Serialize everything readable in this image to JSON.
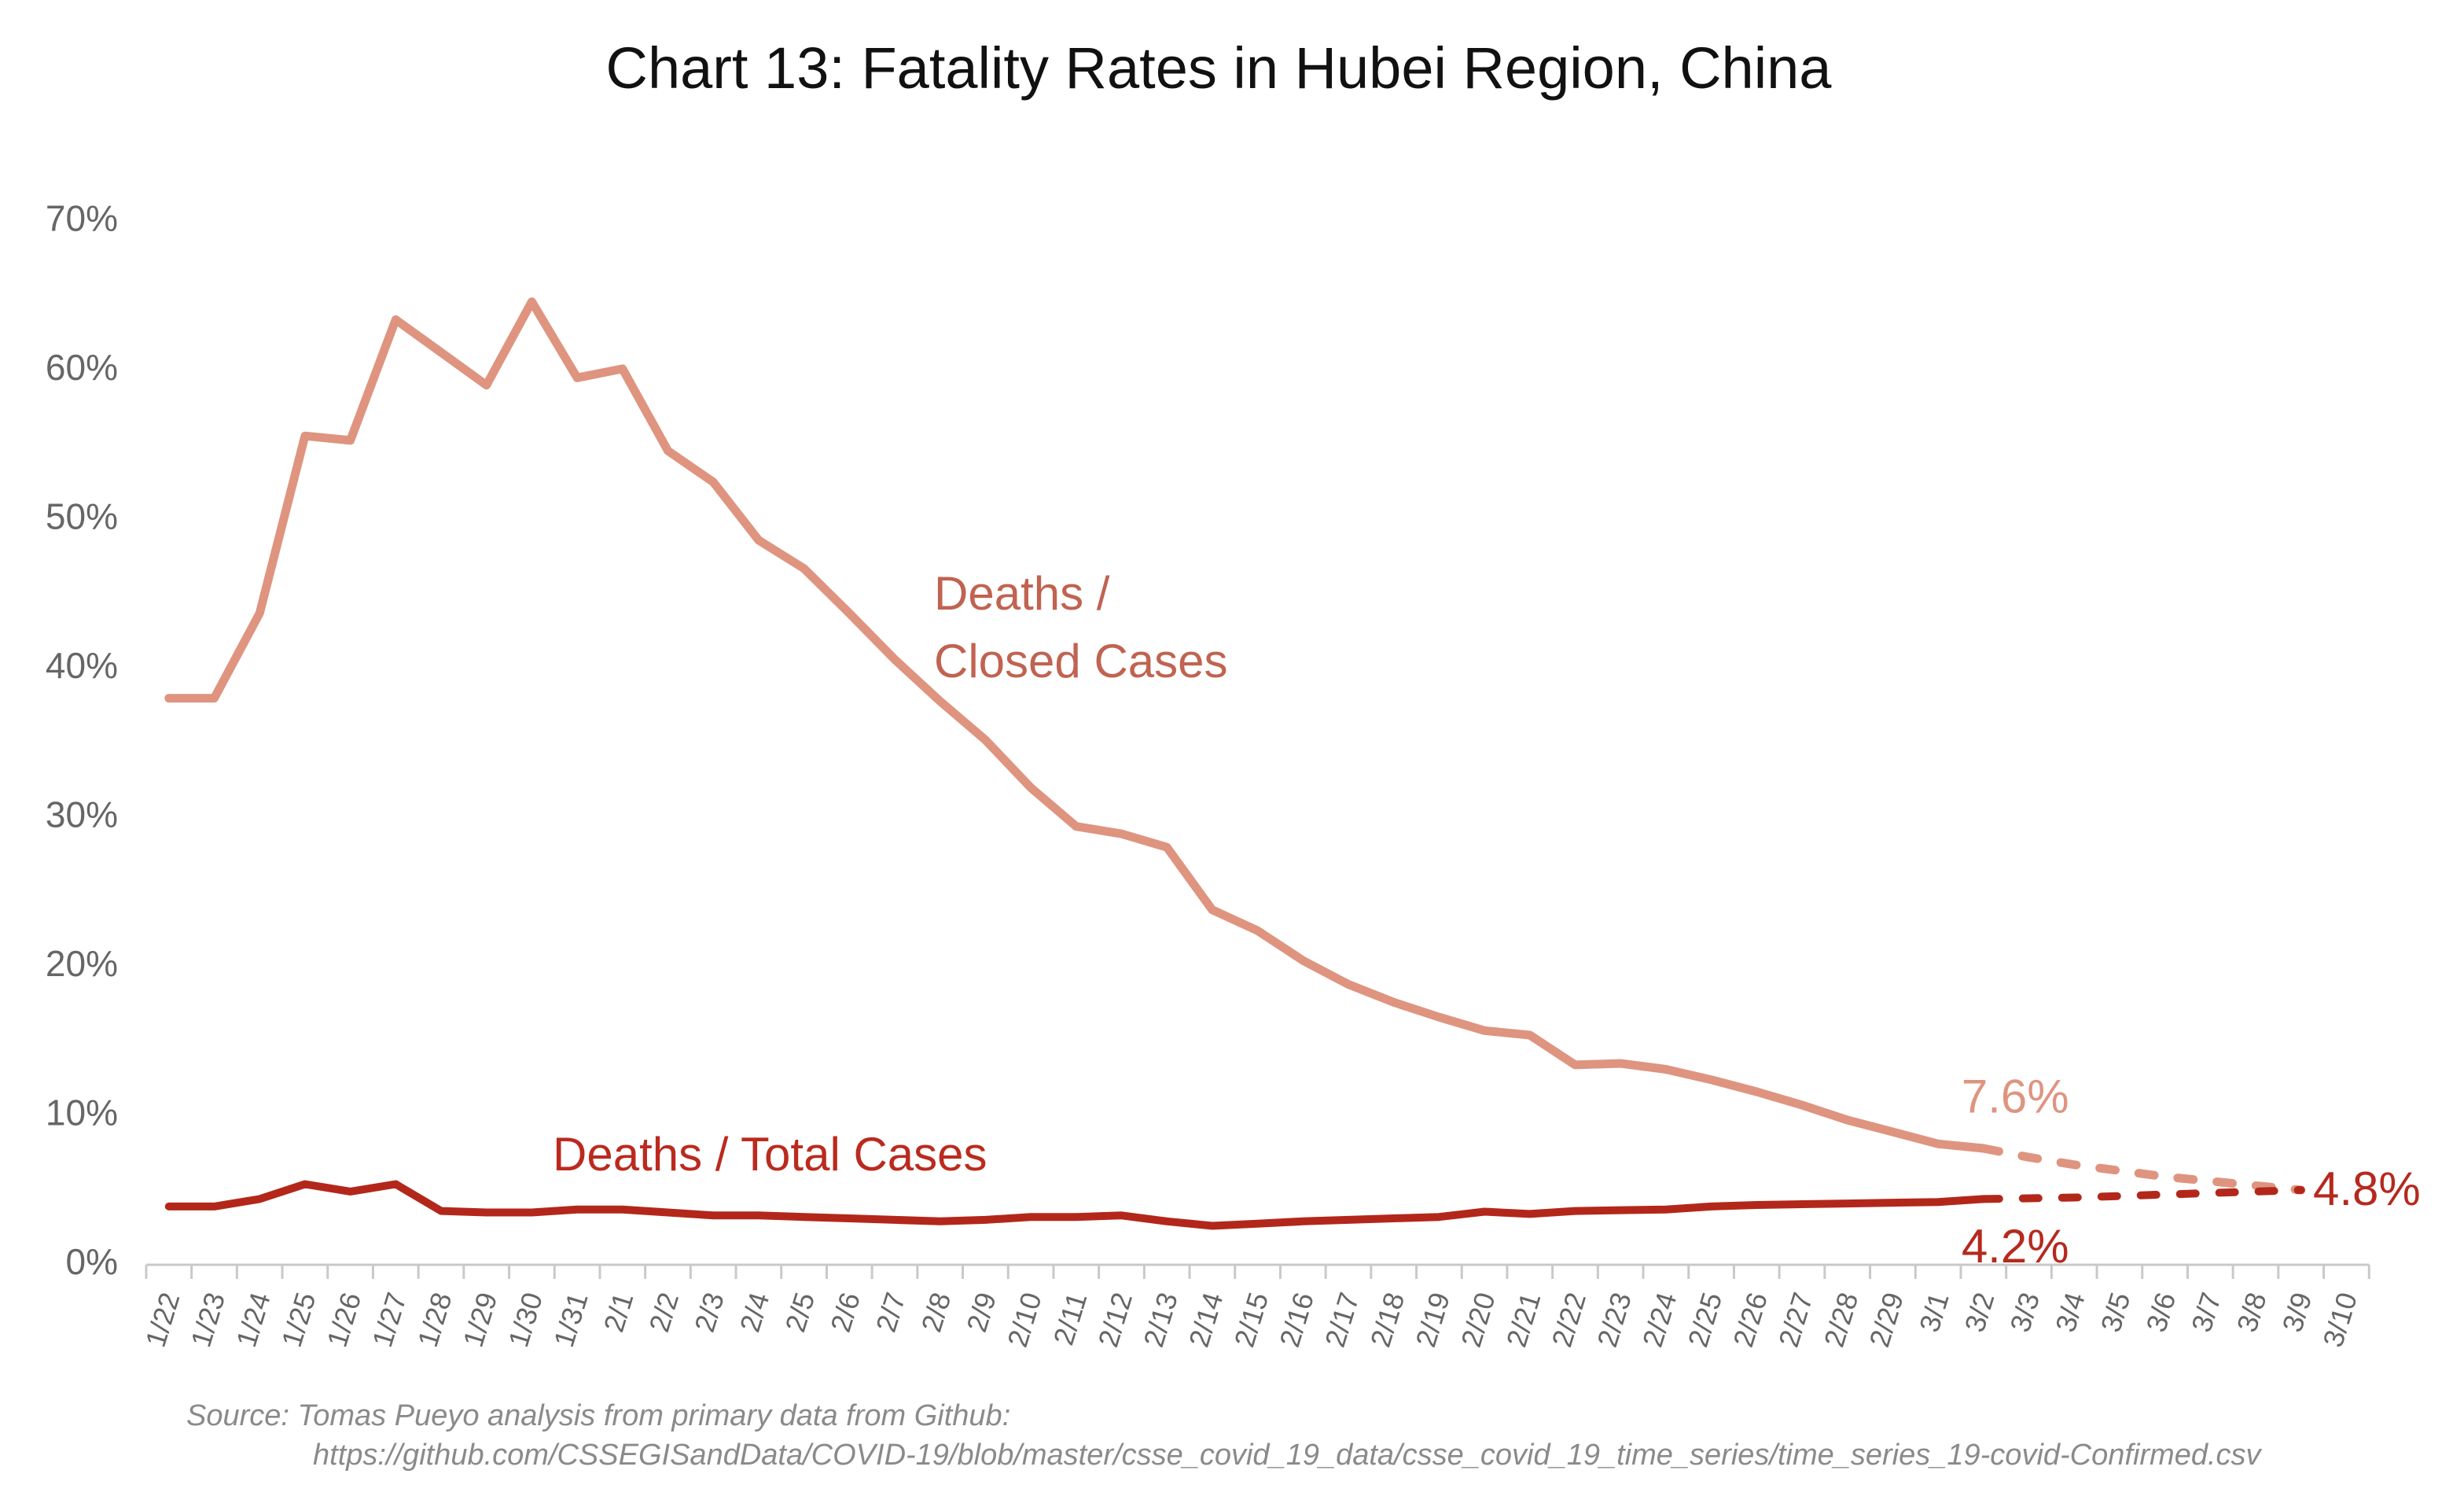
{
  "title": "Chart 13: Fatality Rates in Hubei Region, China",
  "series_labels": {
    "closed_line1": "Deaths /",
    "closed_line2": "Closed Cases",
    "total": "Deaths / Total Cases"
  },
  "source": {
    "line1": "Source: Tomas Pueyo analysis from primary data from Github:",
    "line2": "https://github.com/CSSEGISandData/COVID-19/blob/master/csse_covid_19_data/csse_covid_19_time_series/time_series_19-covid-Confirmed.csv"
  },
  "chart_data": {
    "type": "line",
    "title": "Chart 13: Fatality Rates in Hubei Region, China",
    "xlabel": "",
    "ylabel": "",
    "ylim": [
      0,
      70
    ],
    "grid": false,
    "legend_position": "inline-text-labels",
    "y_tick_labels": [
      "0%",
      "10%",
      "20%",
      "30%",
      "40%",
      "50%",
      "60%",
      "70%"
    ],
    "y_tick_values": [
      0,
      10,
      20,
      30,
      40,
      50,
      60,
      70
    ],
    "x_labels": [
      "1/22",
      "1/23",
      "1/24",
      "1/25",
      "1/26",
      "1/27",
      "1/28",
      "1/29",
      "1/30",
      "1/31",
      "2/1",
      "2/2",
      "2/3",
      "2/4",
      "2/5",
      "2/6",
      "2/7",
      "2/8",
      "2/9",
      "2/10",
      "2/11",
      "2/12",
      "2/13",
      "2/14",
      "2/15",
      "2/16",
      "2/17",
      "2/18",
      "2/19",
      "2/20",
      "2/21",
      "2/22",
      "2/23",
      "2/24",
      "2/25",
      "2/26",
      "2/27",
      "2/28",
      "2/29",
      "3/1",
      "3/2",
      "3/3",
      "3/4",
      "3/5",
      "3/6",
      "3/7",
      "3/8",
      "3/9",
      "3/10"
    ],
    "series": [
      {
        "name": "Deaths / Closed Cases",
        "style": "solid",
        "color": "#DF9480",
        "stroke_width": 11,
        "start_index": 0,
        "values": [
          37.8,
          37.8,
          43.5,
          55.4,
          55.1,
          63.2,
          61.0,
          58.8,
          64.4,
          59.3,
          59.9,
          54.4,
          52.3,
          48.4,
          46.5,
          43.5,
          40.4,
          37.6,
          35.0,
          31.8,
          29.2,
          28.7,
          27.8,
          23.6,
          22.2,
          20.2,
          18.6,
          17.4,
          16.4,
          15.5,
          15.2,
          13.2,
          13.3,
          12.9,
          12.2,
          11.4,
          10.5,
          9.5,
          8.7,
          7.9,
          7.6
        ]
      },
      {
        "name": "Deaths / Closed Cases (projected)",
        "style": "dashed",
        "color": "#DF9480",
        "stroke_width": 11,
        "start_index": 40,
        "values": [
          7.6,
          7.0,
          6.5,
          6.1,
          5.7,
          5.4,
          5.1,
          4.8
        ]
      },
      {
        "name": "Deaths / Total Cases",
        "style": "solid",
        "color": "#B3271B",
        "stroke_width": 10,
        "start_index": 0,
        "values": [
          3.7,
          3.7,
          4.2,
          5.2,
          4.7,
          5.2,
          3.4,
          3.3,
          3.3,
          3.5,
          3.5,
          3.3,
          3.1,
          3.1,
          3.0,
          2.9,
          2.8,
          2.7,
          2.8,
          3.0,
          3.0,
          3.1,
          2.7,
          2.4,
          2.55,
          2.7,
          2.8,
          2.9,
          3.0,
          3.35,
          3.2,
          3.4,
          3.45,
          3.5,
          3.7,
          3.8,
          3.85,
          3.9,
          3.95,
          4.0,
          4.2
        ]
      },
      {
        "name": "Deaths / Total Cases (projected)",
        "style": "dashed",
        "color": "#B3271B",
        "stroke_width": 10,
        "start_index": 40,
        "values": [
          4.2,
          4.25,
          4.3,
          4.4,
          4.5,
          4.6,
          4.7,
          4.8
        ]
      }
    ],
    "annotations": [
      {
        "text": "7.6%",
        "x_index": 40.7,
        "value": 10.0,
        "color": "#DF9480",
        "anchor": "middle"
      },
      {
        "text": "4.2%",
        "x_index": 40.7,
        "value": -0.05,
        "color": "#B5291E",
        "anchor": "middle"
      },
      {
        "text": "4.8%",
        "x_index": 48.45,
        "value": 3.8,
        "color": "#B5291E",
        "anchor": "middle"
      }
    ],
    "axis_color": "#C9C9C9",
    "axis_text_color": "#666666"
  }
}
